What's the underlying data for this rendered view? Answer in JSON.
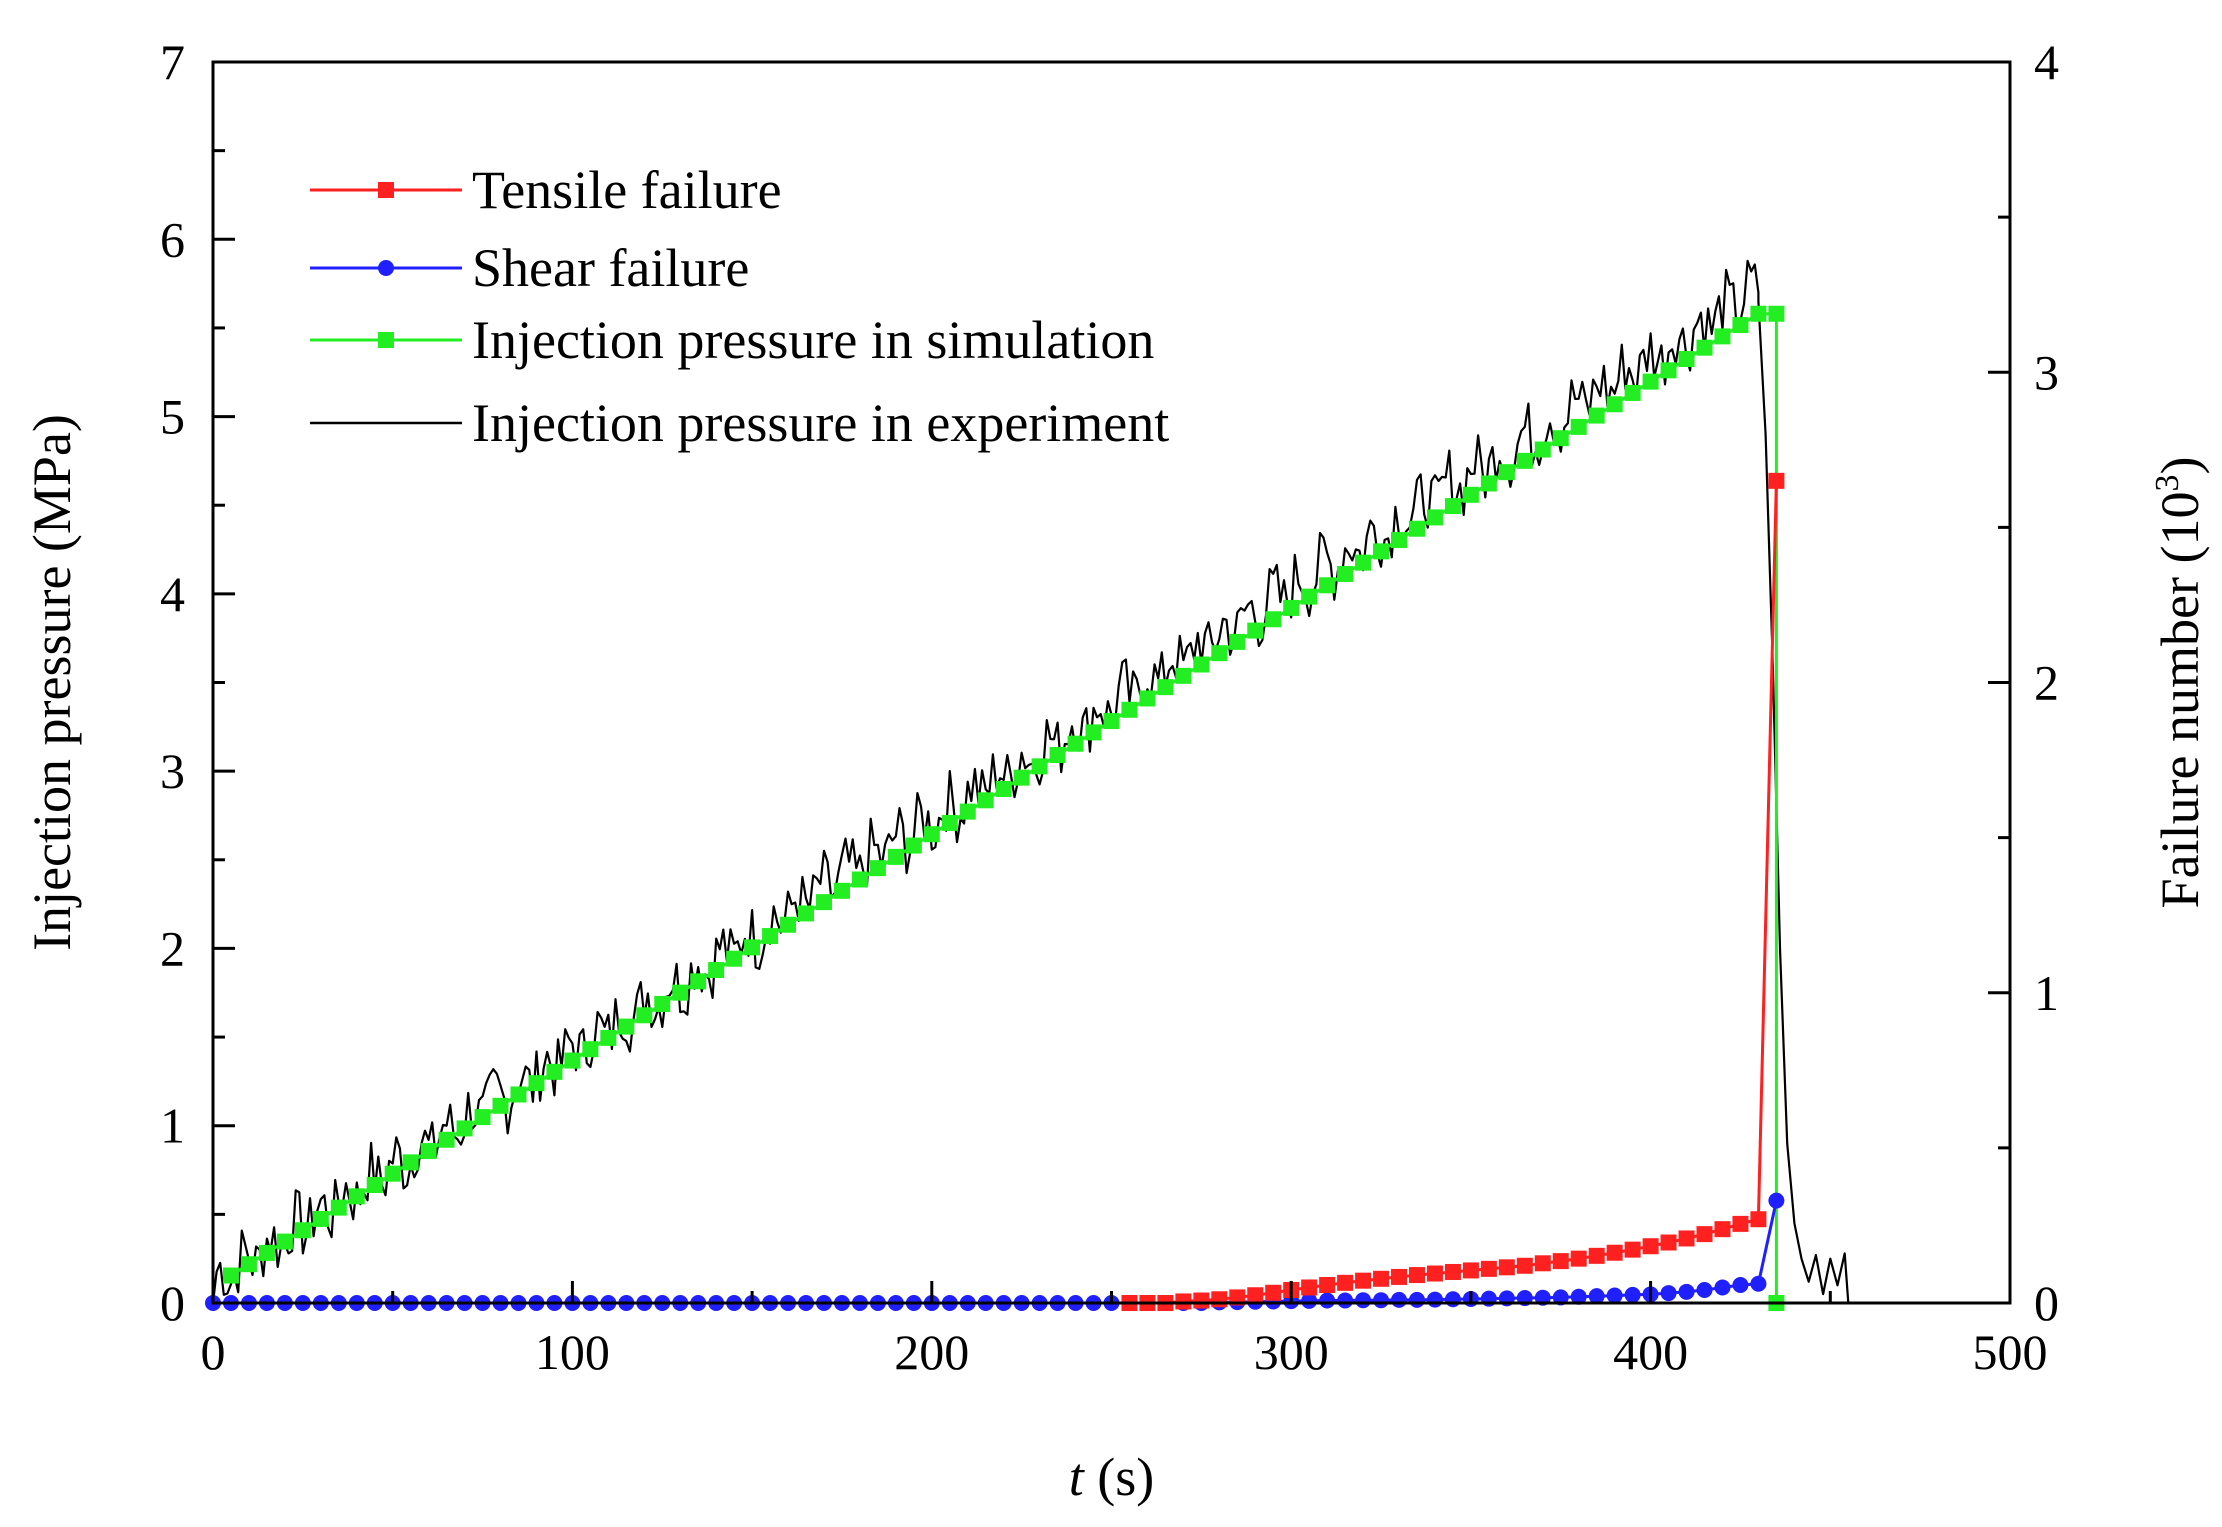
{
  "chart_data": {
    "type": "line",
    "title": "",
    "xlabel": {
      "italic": "t",
      "rest": " (s)"
    },
    "ylabel_left": "Injection pressure (MPa)",
    "ylabel_right": {
      "main": "Failure number (10",
      "sup": "3",
      "close": ")"
    },
    "xlim": [
      0,
      500
    ],
    "ylim_left": [
      0,
      7
    ],
    "ylim_right": [
      0,
      4
    ],
    "x_ticks": [
      0,
      100,
      200,
      300,
      400,
      500
    ],
    "y_left_ticks": [
      0,
      1,
      2,
      3,
      4,
      5,
      6,
      7
    ],
    "y_right_ticks": [
      0,
      1,
      2,
      3,
      4
    ],
    "grid": false,
    "legend": {
      "location": "upper-left",
      "entries": [
        {
          "label": "Tensile failure",
          "color": "#ff2020",
          "marker": "square"
        },
        {
          "label": "Shear failure",
          "color": "#2020ff",
          "marker": "circle"
        },
        {
          "label": "Injection pressure in simulation",
          "color": "#22ee22",
          "marker": "square"
        },
        {
          "label": "Injection pressure in experiment",
          "color": "#000000",
          "marker": "none"
        }
      ]
    },
    "series": [
      {
        "name": "Tensile failure",
        "axis": "right",
        "color": "#ff2020",
        "marker": "square",
        "x": [
          255,
          260,
          265,
          270,
          275,
          280,
          285,
          290,
          295,
          300,
          305,
          310,
          315,
          320,
          325,
          330,
          335,
          340,
          345,
          350,
          355,
          360,
          365,
          370,
          375,
          380,
          385,
          390,
          395,
          400,
          405,
          410,
          415,
          420,
          425,
          430,
          435
        ],
        "y": [
          0.0,
          0.0,
          0.0,
          0.005,
          0.008,
          0.012,
          0.018,
          0.025,
          0.033,
          0.042,
          0.05,
          0.058,
          0.065,
          0.072,
          0.078,
          0.084,
          0.09,
          0.095,
          0.1,
          0.105,
          0.11,
          0.115,
          0.12,
          0.128,
          0.135,
          0.143,
          0.152,
          0.162,
          0.172,
          0.183,
          0.195,
          0.208,
          0.222,
          0.238,
          0.255,
          0.27,
          2.65
        ]
      },
      {
        "name": "Shear failure",
        "axis": "right",
        "color": "#2020ff",
        "marker": "circle",
        "x": [
          0,
          5,
          10,
          15,
          20,
          25,
          30,
          35,
          40,
          45,
          50,
          55,
          60,
          65,
          70,
          75,
          80,
          85,
          90,
          95,
          100,
          105,
          110,
          115,
          120,
          125,
          130,
          135,
          140,
          145,
          150,
          155,
          160,
          165,
          170,
          175,
          180,
          185,
          190,
          195,
          200,
          205,
          210,
          215,
          220,
          225,
          230,
          235,
          240,
          245,
          250,
          255,
          260,
          265,
          270,
          275,
          280,
          285,
          290,
          295,
          300,
          305,
          310,
          315,
          320,
          325,
          330,
          335,
          340,
          345,
          350,
          355,
          360,
          365,
          370,
          375,
          380,
          385,
          390,
          395,
          400,
          405,
          410,
          415,
          420,
          425,
          430,
          435
        ],
        "y": [
          0,
          0,
          0,
          0,
          0,
          0,
          0,
          0,
          0,
          0,
          0,
          0,
          0,
          0,
          0,
          0,
          0,
          0,
          0,
          0,
          0,
          0,
          0,
          0,
          0,
          0,
          0,
          0,
          0,
          0,
          0,
          0,
          0,
          0,
          0,
          0,
          0,
          0,
          0,
          0,
          0,
          0,
          0,
          0,
          0,
          0,
          0,
          0,
          0,
          0,
          0,
          0,
          0,
          0,
          0,
          0,
          0.002,
          0.003,
          0.004,
          0.005,
          0.006,
          0.007,
          0.008,
          0.008,
          0.009,
          0.009,
          0.01,
          0.01,
          0.011,
          0.012,
          0.013,
          0.014,
          0.015,
          0.016,
          0.017,
          0.018,
          0.02,
          0.022,
          0.024,
          0.026,
          0.028,
          0.032,
          0.036,
          0.042,
          0.05,
          0.058,
          0.062,
          0.33
        ]
      },
      {
        "name": "Injection pressure in simulation",
        "axis": "left",
        "color": "#22ee22",
        "marker": "square",
        "x_start": 5,
        "x_step": 5,
        "x_end": 430,
        "y_start": 0.155,
        "y_end": 5.58,
        "final_points": [
          [
            435,
            5.58
          ],
          [
            435,
            0.0
          ]
        ]
      },
      {
        "name": "Injection pressure in experiment",
        "axis": "left",
        "color": "#000000",
        "marker": "none",
        "rise_x": [
          0,
          430
        ],
        "rise_y": [
          0.0,
          5.6
        ],
        "peak": [
          430,
          5.7
        ],
        "decay_x": [
          430,
          432,
          434,
          436,
          438,
          440,
          442,
          444,
          446,
          448,
          450,
          452,
          454,
          455
        ],
        "decay_y": [
          5.65,
          4.9,
          3.6,
          2.0,
          0.9,
          0.45,
          0.25,
          0.12,
          0.27,
          0.05,
          0.25,
          0.1,
          0.28,
          0.0
        ]
      }
    ]
  }
}
